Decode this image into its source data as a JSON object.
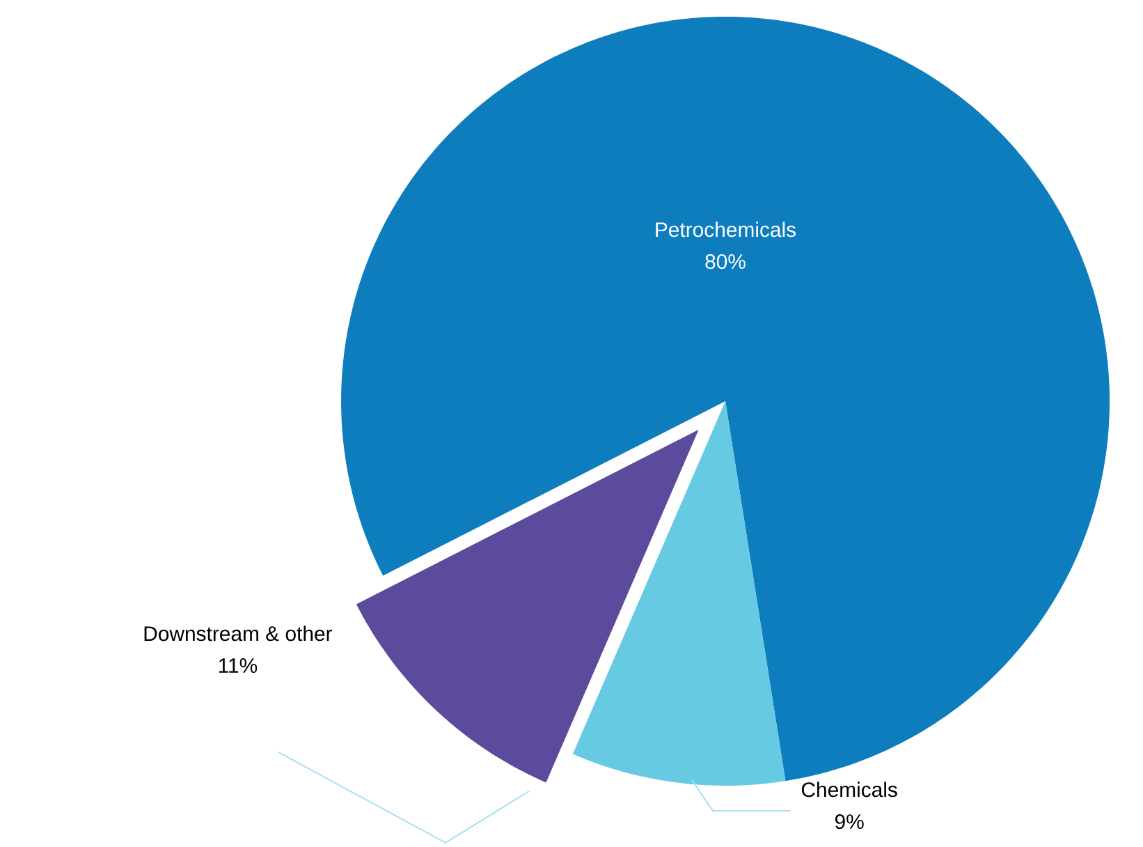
{
  "chart_data": {
    "type": "pie",
    "categories": [
      "Petrochemicals",
      "Chemicals",
      "Downstream & other"
    ],
    "values": [
      80,
      9,
      11
    ],
    "value_labels": [
      "80%",
      "9%",
      "11%"
    ],
    "colors": [
      "#0e7dbe",
      "#67cae3",
      "#5c4a9c"
    ],
    "legend": false
  }
}
